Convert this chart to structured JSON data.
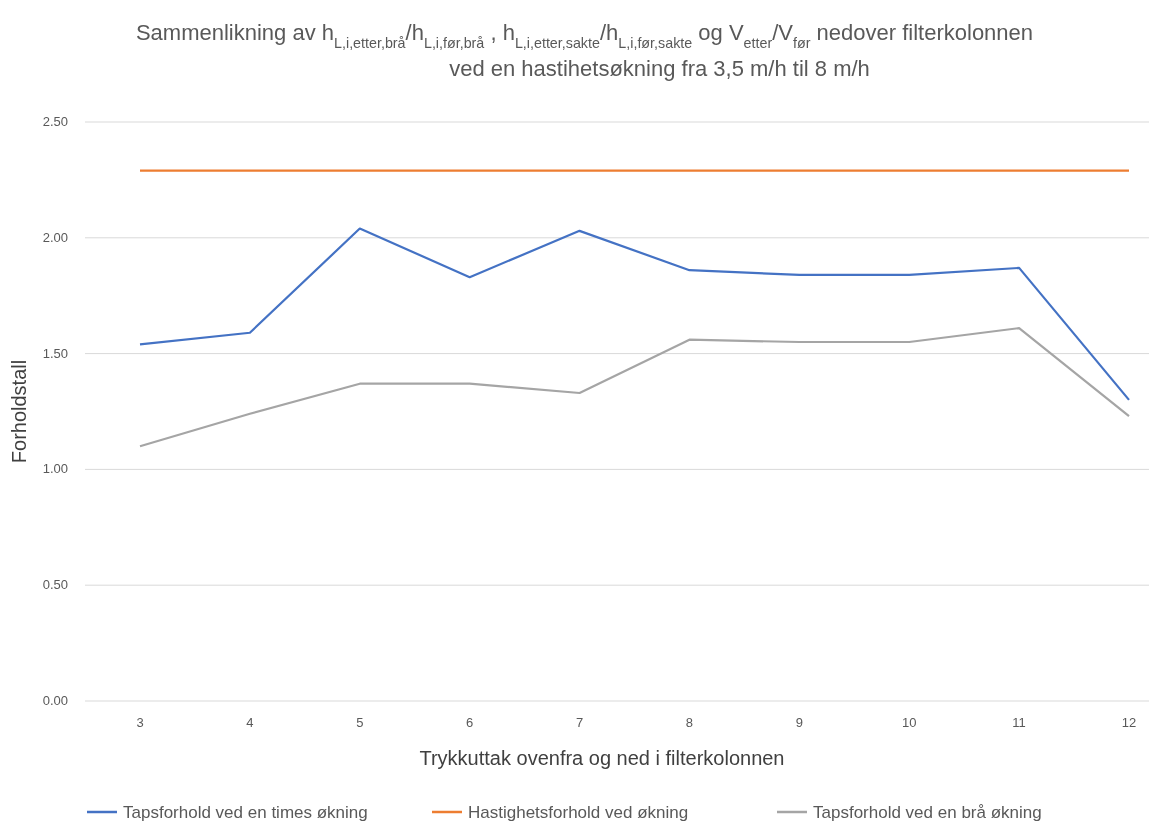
{
  "chart_data": {
    "type": "line",
    "title": "Sammenlikning av h$_{L,i,etter,brå}$/h$_{L,i,før,brå}$ , h$_{L,i,etter,sakte}$/h$_{L,i,før,sakte}$ og V$_{etter}$/V$_{før}$ nedover filterkolonnen",
    "subtitle": "ved en hastihetsøkning fra 3,5 m/h til 8 m/h",
    "xlabel": "Trykkuttak ovenfra og ned i filterkolonnen",
    "ylabel": "Forholdstall",
    "categories": [
      "3",
      "4",
      "5",
      "6",
      "7",
      "8",
      "9",
      "10",
      "11",
      "12"
    ],
    "series": [
      {
        "name": "Tapsforhold ved en times økning",
        "color": "#4472c4",
        "values": [
          1.54,
          1.59,
          2.04,
          1.83,
          2.03,
          1.86,
          1.84,
          1.84,
          1.87,
          1.3
        ]
      },
      {
        "name": "Hastighetsforhold ved økning",
        "color": "#ed7d31",
        "values": [
          2.29,
          2.29,
          2.29,
          2.29,
          2.29,
          2.29,
          2.29,
          2.29,
          2.29,
          2.29
        ]
      },
      {
        "name": "Tapsforhold ved en brå økning",
        "color": "#a5a5a5",
        "values": [
          1.1,
          1.24,
          1.37,
          1.37,
          1.33,
          1.56,
          1.55,
          1.55,
          1.61,
          1.23
        ]
      }
    ],
    "ylim": [
      0,
      2.5
    ],
    "yticks": [
      {
        "value": 0,
        "label": "0.00"
      },
      {
        "value": 0.5,
        "label": "0.50"
      },
      {
        "value": 1,
        "label": "1.00"
      },
      {
        "value": 1.5,
        "label": "1.50"
      },
      {
        "value": 2,
        "label": "2.00"
      },
      {
        "value": 2.5,
        "label": "2.50"
      }
    ],
    "grid": "y",
    "legend": "bottom",
    "marker": "none",
    "line_style": "solid"
  }
}
